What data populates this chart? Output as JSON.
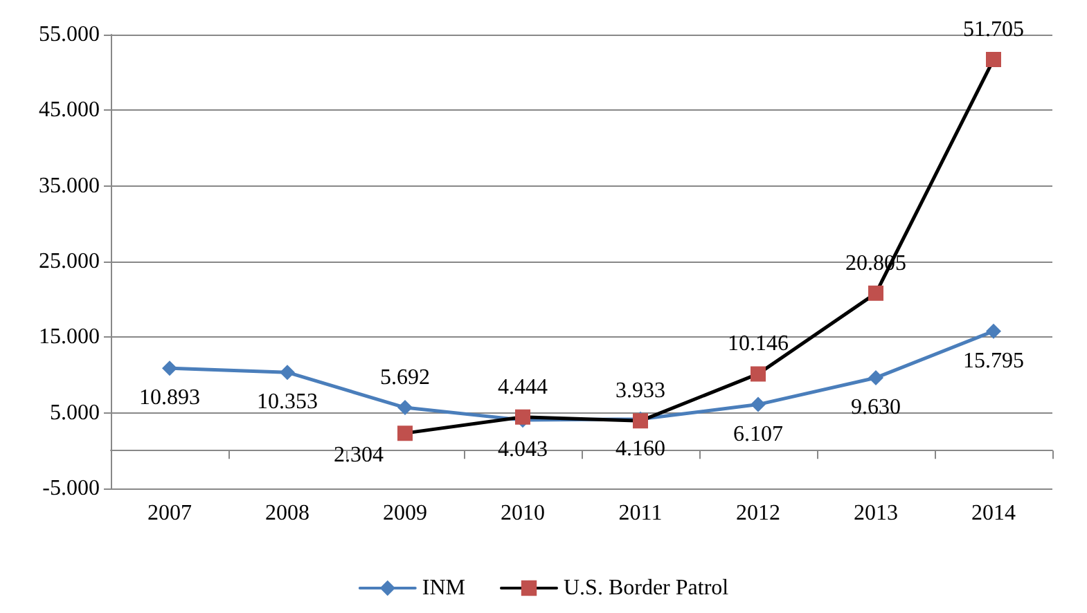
{
  "chart_data": {
    "type": "line",
    "categories": [
      "2007",
      "2008",
      "2009",
      "2010",
      "2011",
      "2012",
      "2013",
      "2014"
    ],
    "series": [
      {
        "name": "INM",
        "color": "#4a7ebb",
        "marker": "diamond",
        "values": [
          10893,
          10353,
          5692,
          4043,
          4160,
          6107,
          9630,
          15795
        ],
        "value_labels": [
          "10.893",
          "10.353",
          "5.692",
          "4.043",
          "4.160",
          "6.107",
          "9.630",
          "15.795"
        ]
      },
      {
        "name": "U.S. Border Patrol",
        "color": "#000000",
        "colors": [
          null,
          null,
          "#c0504d",
          "#c0504d",
          "#c0504d",
          "#c0504d",
          "#c0504d",
          "#c0504d"
        ],
        "marker": "square",
        "values": [
          null,
          null,
          2304,
          4444,
          3933,
          10146,
          20805,
          51705
        ],
        "value_labels": [
          null,
          null,
          "2.304",
          "4.444",
          "3.933",
          "10.146",
          "20.805",
          "51.705"
        ]
      }
    ],
    "ylim": [
      -5000,
      55000
    ],
    "yticks": [
      {
        "value": -5000,
        "label": "-5.000"
      },
      {
        "value": 5000,
        "label": "5.000"
      },
      {
        "value": 15000,
        "label": "15.000"
      },
      {
        "value": 25000,
        "label": "25.000"
      },
      {
        "value": 35000,
        "label": "35.000"
      },
      {
        "value": 45000,
        "label": "45.000"
      },
      {
        "value": 55000,
        "label": "55.000"
      }
    ],
    "grid": "y",
    "legend": "bottom",
    "line_style": "solid"
  }
}
